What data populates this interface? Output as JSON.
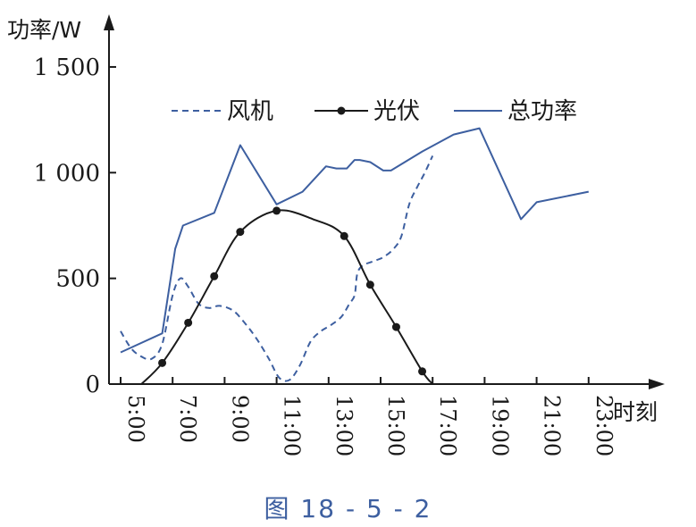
{
  "chart_data": {
    "type": "line",
    "ylabel": "功率/W",
    "xlabel": "时刻",
    "ylim": [
      0,
      1500
    ],
    "xlim": [
      4.6,
      23.2
    ],
    "yticks": [
      {
        "value": 0,
        "label": "0"
      },
      {
        "value": 500,
        "label": "500"
      },
      {
        "value": 1000,
        "label": "1 000"
      },
      {
        "value": 1500,
        "label": "1 500"
      }
    ],
    "xticks": [
      {
        "value": 5,
        "label": "5:00"
      },
      {
        "value": 7,
        "label": "7:00"
      },
      {
        "value": 9,
        "label": "9:00"
      },
      {
        "value": 11,
        "label": "11:00"
      },
      {
        "value": 13,
        "label": "13:00"
      },
      {
        "value": 15,
        "label": "15:00"
      },
      {
        "value": 17,
        "label": "17:00"
      },
      {
        "value": 19,
        "label": "19:00"
      },
      {
        "value": 21,
        "label": "21:00"
      },
      {
        "value": 23,
        "label": "23:00"
      }
    ],
    "legend_position": "top-center",
    "series": [
      {
        "name": "风机",
        "style": "dashed",
        "color": "#3d5fa0",
        "points": [
          [
            5.0,
            250
          ],
          [
            5.4,
            170
          ],
          [
            5.8,
            130
          ],
          [
            6.2,
            120
          ],
          [
            6.6,
            190
          ],
          [
            7.0,
            420
          ],
          [
            7.3,
            500
          ],
          [
            7.6,
            460
          ],
          [
            8.0,
            380
          ],
          [
            8.4,
            360
          ],
          [
            8.8,
            370
          ],
          [
            9.3,
            350
          ],
          [
            9.7,
            300
          ],
          [
            10.2,
            220
          ],
          [
            10.7,
            120
          ],
          [
            11.1,
            30
          ],
          [
            11.5,
            20
          ],
          [
            11.9,
            90
          ],
          [
            12.3,
            200
          ],
          [
            12.7,
            250
          ],
          [
            13.1,
            280
          ],
          [
            13.5,
            320
          ],
          [
            13.8,
            380
          ],
          [
            14.0,
            420
          ],
          [
            14.1,
            520
          ],
          [
            14.3,
            560
          ],
          [
            14.7,
            580
          ],
          [
            15.1,
            600
          ],
          [
            15.5,
            640
          ],
          [
            15.8,
            700
          ],
          [
            16.1,
            850
          ],
          [
            16.4,
            930
          ],
          [
            16.7,
            1000
          ],
          [
            17.0,
            1080
          ]
        ]
      },
      {
        "name": "光伏",
        "style": "solid-with-markers",
        "color": "#1a1a1a",
        "points": [
          [
            5.8,
            0
          ],
          [
            6.6,
            100
          ],
          [
            7.6,
            290
          ],
          [
            8.6,
            510
          ],
          [
            9.6,
            720
          ],
          [
            11.0,
            820
          ],
          [
            12.4,
            780
          ],
          [
            13.6,
            700
          ],
          [
            14.6,
            470
          ],
          [
            15.6,
            270
          ],
          [
            16.6,
            60
          ],
          [
            17.0,
            0
          ]
        ],
        "markers": [
          [
            6.6,
            100
          ],
          [
            7.6,
            290
          ],
          [
            8.6,
            510
          ],
          [
            9.6,
            720
          ],
          [
            11.0,
            820
          ],
          [
            13.6,
            700
          ],
          [
            14.6,
            470
          ],
          [
            15.6,
            270
          ],
          [
            16.6,
            60
          ]
        ]
      },
      {
        "name": "总功率",
        "style": "solid",
        "color": "#3d5fa0",
        "points": [
          [
            5.0,
            150
          ],
          [
            6.6,
            240
          ],
          [
            7.1,
            640
          ],
          [
            7.4,
            750
          ],
          [
            8.6,
            810
          ],
          [
            9.6,
            1130
          ],
          [
            11.0,
            850
          ],
          [
            12.0,
            910
          ],
          [
            12.9,
            1030
          ],
          [
            13.3,
            1020
          ],
          [
            13.7,
            1020
          ],
          [
            14.0,
            1060
          ],
          [
            14.2,
            1060
          ],
          [
            14.6,
            1050
          ],
          [
            15.1,
            1010
          ],
          [
            15.4,
            1010
          ],
          [
            16.6,
            1100
          ],
          [
            17.8,
            1180
          ],
          [
            18.8,
            1210
          ],
          [
            20.4,
            780
          ],
          [
            21.0,
            860
          ],
          [
            23.0,
            910
          ]
        ]
      }
    ],
    "caption": "图 18 - 5 - 2"
  }
}
